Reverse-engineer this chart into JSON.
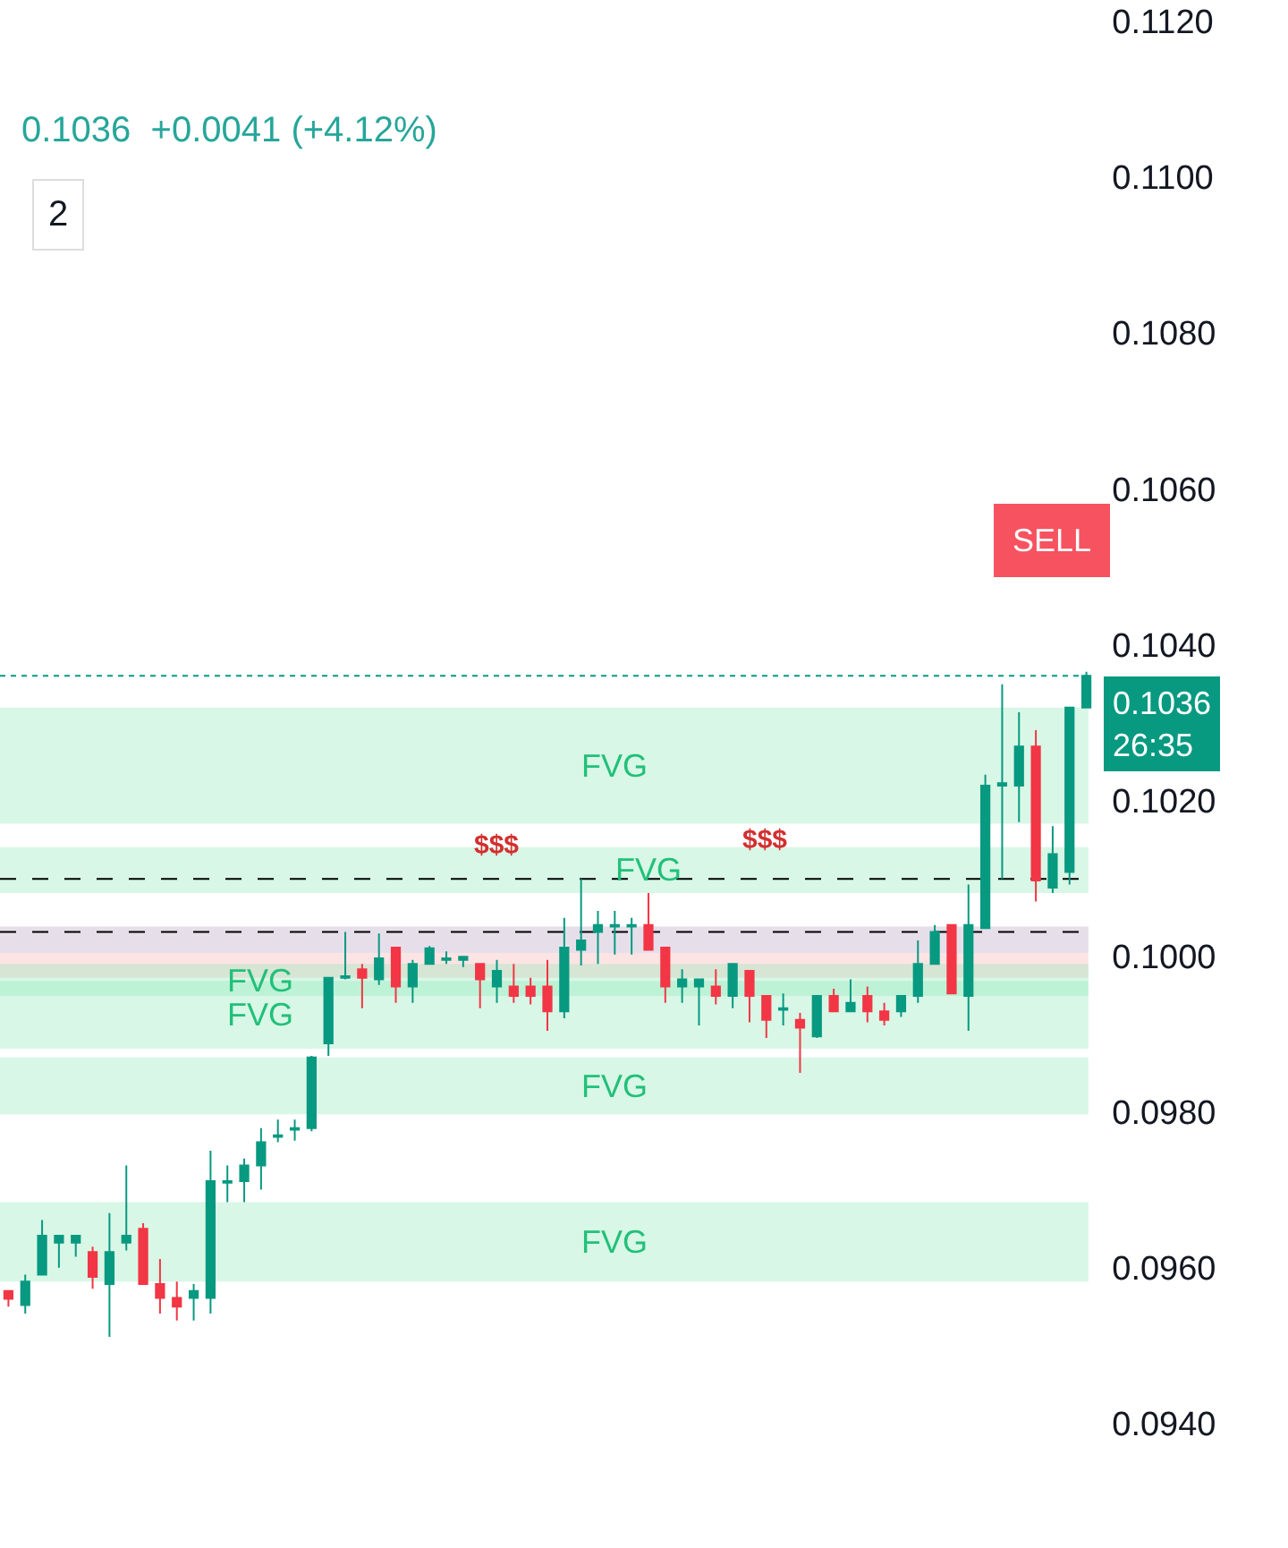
{
  "chart_data": {
    "type": "candlestick",
    "subtitle": "0.1036  +0.0041 (+4.12%)",
    "categories": [
      null,
      null,
      null,
      null,
      null,
      null,
      null,
      null,
      null,
      null,
      null,
      null,
      null,
      null,
      null,
      null,
      null,
      null,
      null,
      null,
      null,
      null,
      null,
      null,
      null,
      null,
      null,
      null,
      null,
      null,
      null,
      null,
      null,
      null,
      null,
      null,
      null,
      null,
      null,
      null,
      null,
      null,
      null,
      null,
      null,
      null,
      null,
      null,
      null,
      null,
      null,
      null,
      null,
      null,
      null,
      null,
      null,
      null,
      null,
      null,
      null,
      null,
      null,
      null,
      null
    ],
    "ohlc": [
      [
        0.0957,
        0.0957,
        0.0955,
        0.0956
      ],
      [
        0.09552,
        0.09591,
        0.09541,
        0.09582
      ],
      [
        0.09591,
        0.09661,
        0.09591,
        0.09641
      ],
      [
        0.09632,
        0.09641,
        0.096,
        0.09641
      ],
      [
        0.09632,
        0.09641,
        0.09614,
        0.09641
      ],
      [
        0.0962,
        0.09627,
        0.09573,
        0.09588
      ],
      [
        0.09579,
        0.0967,
        0.09511,
        0.0962
      ],
      [
        0.09632,
        0.09731,
        0.09622,
        0.09641
      ],
      [
        0.0965,
        0.09657,
        0.09579,
        0.09579
      ],
      [
        0.09579,
        0.09611,
        0.09541,
        0.09561
      ],
      [
        0.09561,
        0.09582,
        0.09532,
        0.0955
      ],
      [
        0.09561,
        0.09579,
        0.09532,
        0.0957
      ],
      [
        0.09561,
        0.0975,
        0.09541,
        0.09711
      ],
      [
        0.09709,
        0.09731,
        0.09684,
        0.09711
      ],
      [
        0.09711,
        0.0974,
        0.09684,
        0.09731
      ],
      [
        0.09731,
        0.09779,
        0.097,
        0.09761
      ],
      [
        0.09768,
        0.0979,
        0.09761,
        0.0977
      ],
      [
        0.09777,
        0.0979,
        0.09763,
        0.09779
      ],
      [
        0.09779,
        0.09872,
        0.09775,
        0.0987
      ],
      [
        0.09888,
        0.09972,
        0.09872,
        0.09972
      ],
      [
        0.09972,
        0.10031,
        0.0997,
        0.09974
      ],
      [
        0.09983,
        0.0999,
        0.09933,
        0.09972
      ],
      [
        0.0997,
        0.10029,
        0.09963,
        0.09997
      ],
      [
        0.10011,
        0.10011,
        0.0994,
        0.09961
      ],
      [
        0.09961,
        0.09995,
        0.0994,
        0.0999
      ],
      [
        0.0999,
        0.10013,
        0.0999,
        0.1001
      ],
      [
        0.09995,
        0.10006,
        0.0999,
        0.09997
      ],
      [
        0.09995,
        0.1,
        0.09986,
        0.09999
      ],
      [
        0.0999,
        0.0999,
        0.09933,
        0.0997
      ],
      [
        0.09961,
        0.09995,
        0.0994,
        0.09981
      ],
      [
        0.09961,
        0.0999,
        0.0994,
        0.09949
      ],
      [
        0.09961,
        0.09972,
        0.09938,
        0.09949
      ],
      [
        0.09961,
        0.09995,
        0.09904,
        0.09929
      ],
      [
        0.09929,
        0.10049,
        0.0992,
        0.10011
      ],
      [
        0.10008,
        0.10099,
        0.09988,
        0.1002
      ],
      [
        0.10031,
        0.10058,
        0.0999,
        0.1004
      ],
      [
        0.10038,
        0.10058,
        0.10002,
        0.1004
      ],
      [
        0.10038,
        0.10049,
        0.10002,
        0.1004
      ],
      [
        0.1004,
        0.10081,
        0.10008,
        0.10008
      ],
      [
        0.10011,
        0.10011,
        0.0994,
        0.09961
      ],
      [
        0.09961,
        0.09983,
        0.0994,
        0.0997
      ],
      [
        0.09961,
        0.0997,
        0.09911,
        0.0997
      ],
      [
        0.09961,
        0.09983,
        0.09938,
        0.09949
      ],
      [
        0.09949,
        0.0999,
        0.09933,
        0.0999
      ],
      [
        0.09981,
        0.09981,
        0.09915,
        0.09949
      ],
      [
        0.09949,
        0.09949,
        0.09895,
        0.09918
      ],
      [
        0.09931,
        0.09952,
        0.09911,
        0.09933
      ],
      [
        0.09918,
        0.09927,
        0.0985,
        0.09908
      ],
      [
        0.09897,
        0.09949,
        0.09895,
        0.09949
      ],
      [
        0.09949,
        0.09958,
        0.09929,
        0.09929
      ],
      [
        0.09929,
        0.0997,
        0.09929,
        0.0994
      ],
      [
        0.09949,
        0.09961,
        0.09915,
        0.09929
      ],
      [
        0.09929,
        0.0994,
        0.09911,
        0.09918
      ],
      [
        0.09929,
        0.09949,
        0.09922,
        0.09949
      ],
      [
        0.09949,
        0.1002,
        0.0994,
        0.0999
      ],
      [
        0.0999,
        0.1004,
        0.0999,
        0.10031
      ],
      [
        0.1004,
        0.1004,
        0.09952,
        0.09952
      ],
      [
        0.09949,
        0.10092,
        0.09904,
        0.1004
      ],
      [
        0.10036,
        0.10233,
        0.10036,
        0.10219
      ],
      [
        0.10219,
        0.10349,
        0.10099,
        0.10222
      ],
      [
        0.10219,
        0.10313,
        0.10172,
        0.10269
      ],
      [
        0.10269,
        0.1029,
        0.1007,
        0.10097
      ],
      [
        0.10088,
        0.10167,
        0.10081,
        0.10131
      ],
      [
        0.10108,
        0.10319,
        0.10092,
        0.10319
      ],
      [
        0.10319,
        0.10365,
        0.10319,
        0.1036
      ]
    ],
    "colors": [
      "#f23645",
      "#089981",
      "#089981",
      "#089981",
      "#089981",
      "#f23645",
      "#089981",
      "#089981",
      "#f23645",
      "#f23645",
      "#f23645",
      "#089981",
      "#089981",
      "#089981",
      "#089981",
      "#089981",
      "#089981",
      "#089981",
      "#089981",
      "#089981",
      "#089981",
      "#f23645",
      "#089981",
      "#f23645",
      "#089981",
      "#089981",
      "#089981",
      "#089981",
      "#f23645",
      "#089981",
      "#f23645",
      "#f23645",
      "#f23645",
      "#089981",
      "#089981",
      "#089981",
      "#089981",
      "#089981",
      "#f23645",
      "#f23645",
      "#089981",
      "#089981",
      "#f23645",
      "#089981",
      "#f23645",
      "#f23645",
      "#089981",
      "#f23645",
      "#089981",
      "#f23645",
      "#089981",
      "#f23645",
      "#f23645",
      "#089981",
      "#089981",
      "#089981",
      "#f23645",
      "#089981",
      "#089981",
      "#089981",
      "#089981",
      "#f23645",
      "#089981",
      "#089981",
      "#089981"
    ],
    "ylim": [
      0.0924,
      0.112
    ],
    "yticks": [
      {
        "value": 0.094,
        "label": "0.0940"
      },
      {
        "value": 0.096,
        "label": "0.0960"
      },
      {
        "value": 0.098,
        "label": "0.0980"
      },
      {
        "value": 0.1,
        "label": "0.1000"
      },
      {
        "value": 0.102,
        "label": "0.1020"
      },
      {
        "value": 0.104,
        "label": "0.1040"
      },
      {
        "value": 0.106,
        "label": "0.1060"
      },
      {
        "value": 0.108,
        "label": "0.1080"
      },
      {
        "value": 0.11,
        "label": "0.1100"
      },
      {
        "value": 0.112,
        "label": "0.1120"
      }
    ],
    "tick_labels": "y",
    "grid": false,
    "bands": [
      {
        "axis": "y",
        "from": 0.09582,
        "to": 0.09684,
        "color": "#8ee8b8",
        "label": "FVG"
      },
      {
        "axis": "y",
        "from": 0.09797,
        "to": 0.0987,
        "color": "#8ee8b8",
        "label": "FVG"
      },
      {
        "axis": "y",
        "from": 0.09881,
        "to": 0.09968,
        "color": "#8ee8b8",
        "label": "FVG"
      },
      {
        "axis": "y",
        "from": 0.09972,
        "to": 0.10038,
        "color": "#f7b3b3"
      },
      {
        "axis": "y",
        "from": 0.10004,
        "to": 0.10038,
        "color": "#bcd6f5"
      },
      {
        "axis": "y",
        "from": 0.09949,
        "to": 0.0999,
        "color": "#8ee8b8",
        "label": "FVG"
      },
      {
        "axis": "y",
        "from": 0.10081,
        "to": 0.1014,
        "color": "#8ee8b8",
        "label": "FVG"
      },
      {
        "axis": "y",
        "from": 0.1017,
        "to": 0.10319,
        "color": "#8ee8b8",
        "label": "FVG"
      }
    ],
    "ref_lines": [
      {
        "axis": "y",
        "value": 0.10099,
        "label": "$$$",
        "line_style": "dashed",
        "color": "#000000"
      },
      {
        "axis": "y",
        "value": 0.10031,
        "label": "$$$",
        "line_style": "dashed",
        "color": "#000000"
      },
      {
        "axis": "y",
        "value": 0.1036,
        "label": "0.1036\n26:35",
        "line_style": "dotted",
        "color": "#089981"
      }
    ],
    "annotations": [
      "2",
      "SELL"
    ]
  }
}
